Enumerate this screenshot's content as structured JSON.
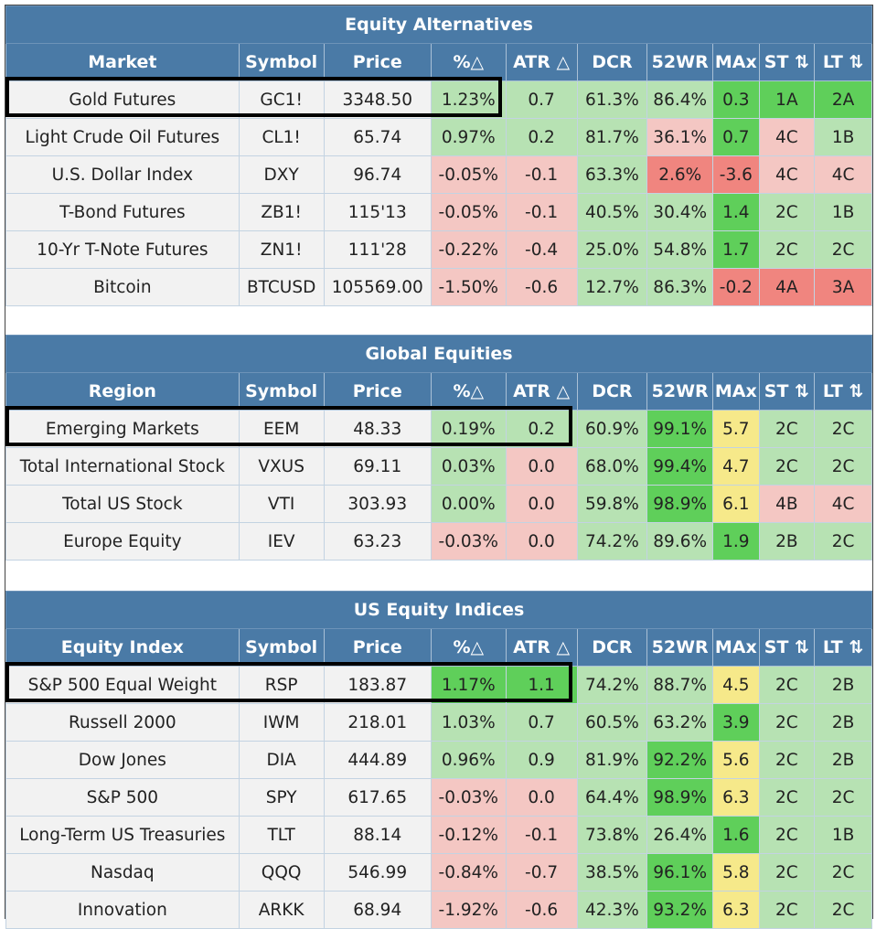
{
  "colors": {
    "header_blue": "#4a7aa6",
    "light_green": "#b7e2b3",
    "dark_green": "#5fcf5a",
    "light_red": "#f4c7c3",
    "red": "#f0857f",
    "yellow": "#f6e98a",
    "gray": "#f2f2f2"
  },
  "sections": [
    {
      "title": "Equity Alternatives",
      "headers": [
        "Market",
        "Symbol",
        "Price",
        "%△",
        "ATR △",
        "DCR",
        "52WR",
        "MAx",
        "ST ⇅",
        "LT ⇅"
      ],
      "highlight_row": 0,
      "highlight_span": "name-to-pct",
      "rows": [
        {
          "cells": [
            "Gold Futures",
            "GC1!",
            "3348.50",
            "1.23%",
            "0.7",
            "61.3%",
            "86.4%",
            "0.3",
            "1A",
            "2A"
          ],
          "colors": [
            "g",
            "g",
            "g",
            "lg",
            "lg",
            "lg",
            "lg",
            "dg",
            "dg",
            "dg"
          ]
        },
        {
          "cells": [
            "Light Crude Oil Futures",
            "CL1!",
            "65.74",
            "0.97%",
            "0.2",
            "81.7%",
            "36.1%",
            "0.7",
            "4C",
            "1B"
          ],
          "colors": [
            "g",
            "g",
            "g",
            "lg",
            "lg",
            "lg",
            "pk",
            "dg",
            "pk",
            "lg"
          ]
        },
        {
          "cells": [
            "U.S. Dollar Index",
            "DXY",
            "96.74",
            "-0.05%",
            "-0.1",
            "63.3%",
            "2.6%",
            "-3.6",
            "4C",
            "4C"
          ],
          "colors": [
            "g",
            "g",
            "g",
            "pk",
            "pk",
            "lg",
            "rd",
            "rd",
            "pk",
            "pk"
          ]
        },
        {
          "cells": [
            "T-Bond Futures",
            "ZB1!",
            "115'13",
            "-0.05%",
            "-0.1",
            "40.5%",
            "30.4%",
            "1.4",
            "2C",
            "1B"
          ],
          "colors": [
            "g",
            "g",
            "g",
            "pk",
            "pk",
            "lg",
            "lg",
            "dg",
            "lg",
            "lg"
          ]
        },
        {
          "cells": [
            "10-Yr T-Note Futures",
            "ZN1!",
            "111'28",
            "-0.22%",
            "-0.4",
            "25.0%",
            "54.8%",
            "1.7",
            "2C",
            "2C"
          ],
          "colors": [
            "g",
            "g",
            "g",
            "pk",
            "pk",
            "lg",
            "lg",
            "dg",
            "lg",
            "lg"
          ]
        },
        {
          "cells": [
            "Bitcoin",
            "BTCUSD",
            "105569.00",
            "-1.50%",
            "-0.6",
            "12.7%",
            "86.3%",
            "-0.2",
            "4A",
            "3A"
          ],
          "colors": [
            "g",
            "g",
            "g",
            "pk",
            "pk",
            "lg",
            "lg",
            "rd",
            "rd",
            "rd"
          ]
        }
      ]
    },
    {
      "title": "Global Equities",
      "headers": [
        "Region",
        "Symbol",
        "Price",
        "%△",
        "ATR △",
        "DCR",
        "52WR",
        "MAx",
        "ST ⇅",
        "LT ⇅"
      ],
      "highlight_row": 0,
      "highlight_span": "name-to-atr",
      "rows": [
        {
          "cells": [
            "Emerging Markets",
            "EEM",
            "48.33",
            "0.19%",
            "0.2",
            "60.9%",
            "99.1%",
            "5.7",
            "2C",
            "2C"
          ],
          "colors": [
            "g",
            "g",
            "g",
            "lg",
            "lg",
            "lg",
            "dg",
            "yl",
            "lg",
            "lg"
          ]
        },
        {
          "cells": [
            "Total International Stock",
            "VXUS",
            "69.11",
            "0.03%",
            "0.0",
            "68.0%",
            "99.4%",
            "4.7",
            "2C",
            "2C"
          ],
          "colors": [
            "g",
            "g",
            "g",
            "lg",
            "pk",
            "lg",
            "dg",
            "yl",
            "lg",
            "lg"
          ]
        },
        {
          "cells": [
            "Total US Stock",
            "VTI",
            "303.93",
            "0.00%",
            "0.0",
            "59.8%",
            "98.9%",
            "6.1",
            "4B",
            "4C"
          ],
          "colors": [
            "g",
            "g",
            "g",
            "lg",
            "pk",
            "lg",
            "dg",
            "yl",
            "pk",
            "pk"
          ]
        },
        {
          "cells": [
            "Europe Equity",
            "IEV",
            "63.23",
            "-0.03%",
            "0.0",
            "74.2%",
            "89.6%",
            "1.9",
            "2B",
            "2C"
          ],
          "colors": [
            "g",
            "g",
            "g",
            "pk",
            "pk",
            "lg",
            "lg",
            "dg",
            "lg",
            "lg"
          ]
        }
      ]
    },
    {
      "title": "US Equity Indices",
      "headers": [
        "Equity Index",
        "Symbol",
        "Price",
        "%△",
        "ATR △",
        "DCR",
        "52WR",
        "MAx",
        "ST ⇅",
        "LT ⇅"
      ],
      "highlight_row": 0,
      "highlight_span": "name-to-atr",
      "rows": [
        {
          "cells": [
            "S&P 500 Equal Weight",
            "RSP",
            "183.87",
            "1.17%",
            "1.1",
            "74.2%",
            "88.7%",
            "4.5",
            "2C",
            "2B"
          ],
          "colors": [
            "g",
            "g",
            "g",
            "dg",
            "dg",
            "lg",
            "lg",
            "yl",
            "lg",
            "lg"
          ]
        },
        {
          "cells": [
            "Russell 2000",
            "IWM",
            "218.01",
            "1.03%",
            "0.7",
            "60.5%",
            "63.2%",
            "3.9",
            "2C",
            "2B"
          ],
          "colors": [
            "g",
            "g",
            "g",
            "lg",
            "lg",
            "lg",
            "lg",
            "dg",
            "lg",
            "lg"
          ]
        },
        {
          "cells": [
            "Dow Jones",
            "DIA",
            "444.89",
            "0.96%",
            "0.9",
            "81.9%",
            "92.2%",
            "5.6",
            "2C",
            "2B"
          ],
          "colors": [
            "g",
            "g",
            "g",
            "lg",
            "lg",
            "lg",
            "dg",
            "yl",
            "lg",
            "lg"
          ]
        },
        {
          "cells": [
            "S&P 500",
            "SPY",
            "617.65",
            "-0.03%",
            "0.0",
            "64.4%",
            "98.9%",
            "6.3",
            "2C",
            "2C"
          ],
          "colors": [
            "g",
            "g",
            "g",
            "pk",
            "pk",
            "lg",
            "dg",
            "yl",
            "lg",
            "lg"
          ]
        },
        {
          "cells": [
            "Long-Term US Treasuries",
            "TLT",
            "88.14",
            "-0.12%",
            "-0.1",
            "73.8%",
            "26.4%",
            "1.6",
            "2C",
            "1B"
          ],
          "colors": [
            "g",
            "g",
            "g",
            "pk",
            "pk",
            "lg",
            "lg",
            "dg",
            "lg",
            "lg"
          ]
        },
        {
          "cells": [
            "Nasdaq",
            "QQQ",
            "546.99",
            "-0.84%",
            "-0.7",
            "38.5%",
            "96.1%",
            "5.8",
            "2C",
            "2C"
          ],
          "colors": [
            "g",
            "g",
            "g",
            "pk",
            "pk",
            "lg",
            "dg",
            "yl",
            "lg",
            "lg"
          ]
        },
        {
          "cells": [
            "Innovation",
            "ARKK",
            "68.94",
            "-1.92%",
            "-0.6",
            "42.3%",
            "93.2%",
            "6.3",
            "2C",
            "2C"
          ],
          "colors": [
            "g",
            "g",
            "g",
            "pk",
            "pk",
            "lg",
            "dg",
            "yl",
            "lg",
            "lg"
          ]
        }
      ]
    }
  ]
}
